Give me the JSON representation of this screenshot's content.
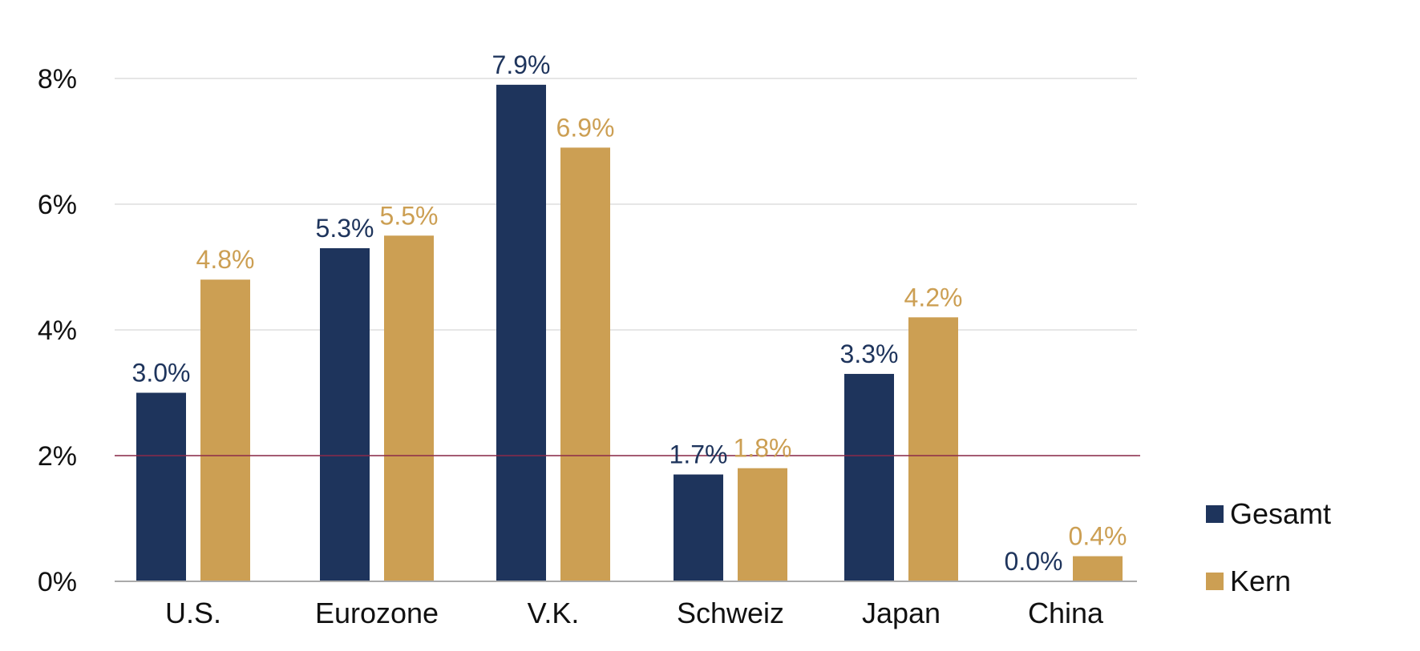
{
  "chart_data": {
    "type": "bar",
    "categories": [
      "U.S.",
      "Eurozone",
      "V.K.",
      "Schweiz",
      "Japan",
      "China"
    ],
    "series": [
      {
        "name": "Gesamt",
        "color": "#1e345c",
        "values": [
          3.0,
          5.3,
          7.9,
          1.7,
          3.3,
          0.0
        ],
        "labels": [
          "3.0%",
          "5.3%",
          "7.9%",
          "1.7%",
          "3.3%",
          "0.0%"
        ]
      },
      {
        "name": "Kern",
        "color": "#cc9f53",
        "values": [
          4.8,
          5.5,
          6.9,
          1.8,
          4.2,
          0.4
        ],
        "labels": [
          "4.8%",
          "5.5%",
          "6.9%",
          "1.8%",
          "4.2%",
          "0.4%"
        ]
      }
    ],
    "ylim": [
      0,
      8
    ],
    "yticks": [
      0,
      2,
      4,
      6,
      8
    ],
    "ytick_labels": [
      "0%",
      "2%",
      "4%",
      "6%",
      "8%"
    ],
    "reference_line": {
      "value": 2,
      "color": "#8b2a4a"
    },
    "grid": true,
    "gridline_color": "#dedede",
    "legend_position": "right",
    "title": "",
    "xlabel": "",
    "ylabel": ""
  }
}
